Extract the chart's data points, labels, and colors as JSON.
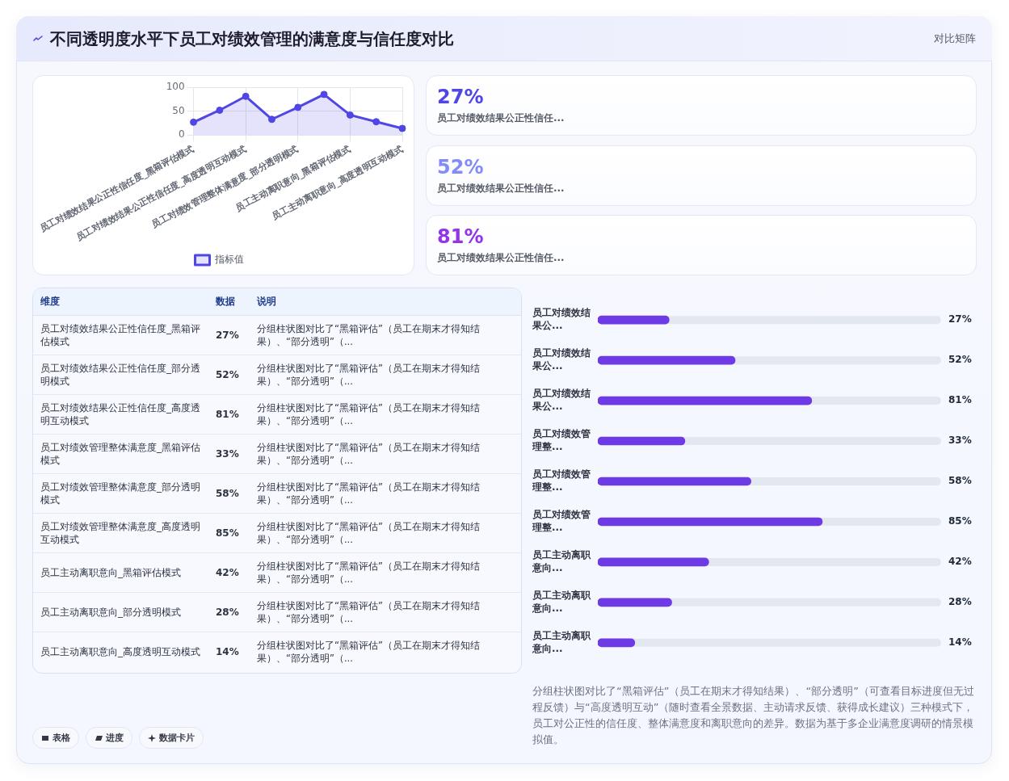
{
  "chart_data": [
    {
      "type": "other",
      "title": "不同透明度水平下员工对绩效管理的满意度与信任度对比",
      "annotations": [
        "对比矩阵"
      ]
    },
    {
      "type": "area",
      "categories": [
        "员工对绩效结果公正性信任度_黑箱评估模式",
        null,
        "员工对绩效结果公正性信任度_高度透明互动模式",
        null,
        "员工对绩效管理整体满意度_部分透明模式",
        null,
        "员工主动离职意向_黑箱评估模式",
        null,
        "员工主动离职意向_高度透明互动模式"
      ],
      "series": [
        {
          "name": "指标值",
          "color": "#4f46e5",
          "values": [
            27,
            52,
            81,
            33,
            58,
            85,
            42,
            28,
            14
          ]
        }
      ],
      "ylim": [
        0,
        100
      ],
      "yticks": [
        0,
        50,
        100
      ],
      "grid": true,
      "legend": "bottom",
      "marker": "circle"
    },
    {
      "type": "other",
      "annotations": [
        "27%",
        "员工对绩效结果公正性信任...",
        "52%",
        "员工对绩效结果公正性信任...",
        "81%",
        "员工对绩效结果公正性信任..."
      ],
      "colors": [
        "#4f46e5",
        "#818cf8",
        "#9333ea"
      ]
    },
    {
      "type": "other",
      "annotations": [
        "维度",
        "数据",
        "说明",
        "员工对绩效结果公正性信任度_黑箱评估模式",
        "27%",
        "分组柱状图对比了“黑箱评估”（员工在期末才得知结果）、“部分透明”（...",
        "员工对绩效结果公正性信任度_部分透明模式",
        "52%",
        "分组柱状图对比了“黑箱评估”（员工在期末才得知结果）、“部分透明”（...",
        "员工对绩效结果公正性信任度_高度透明互动模式",
        "81%",
        "分组柱状图对比了“黑箱评估”（员工在期末才得知结果）、“部分透明”（...",
        "员工对绩效管理整体满意度_黑箱评估模式",
        "33%",
        "分组柱状图对比了“黑箱评估”（员工在期末才得知结果）、“部分透明”（...",
        "员工对绩效管理整体满意度_部分透明模式",
        "58%",
        "分组柱状图对比了“黑箱评估”（员工在期末才得知结果）、“部分透明”（...",
        "员工对绩效管理整体满意度_高度透明互动模式",
        "85%",
        "分组柱状图对比了“黑箱评估”（员工在期末才得知结果）、“部分透明”（...",
        "员工主动离职意向_黑箱评估模式",
        "42%",
        "分组柱状图对比了“黑箱评估”（员工在期末才得知结果）、“部分透明”（...",
        "员工主动离职意向_部分透明模式",
        "28%",
        "分组柱状图对比了“黑箱评估”（员工在期末才得知结果）、“部分透明”（...",
        "员工主动离职意向_高度透明互动模式",
        "14%",
        "分组柱状图对比了“黑箱评估”（员工在期末才得知结果）、“部分透明”（..."
      ]
    },
    {
      "type": "bar",
      "orientation": "horizontal",
      "categories": [
        "员工对绩效结果公...",
        "员工对绩效结果公...",
        "员工对绩效结果公...",
        "员工对绩效管理整...",
        "员工对绩效管理整...",
        "员工对绩效管理整...",
        "员工主动离职意向...",
        "员工主动离职意向...",
        "员工主动离职意向..."
      ],
      "values": [
        27,
        52,
        81,
        33,
        58,
        85,
        42,
        28,
        14
      ],
      "color": "#6d3ae6",
      "xlim": [
        0,
        130
      ],
      "value_labels": [
        "27%",
        "52%",
        "81%",
        "33%",
        "58%",
        "85%",
        "42%",
        "28%",
        "14%"
      ],
      "tick_labels": "y",
      "annotations": [
        "分组柱状图对比了“黑箱评估”（员工在期末才得知结果）、“部分透明”（可查看目标进度但无过程反馈）与“高度透明互动”（随时查看全景数据、主动请求反馈、获得成长建议）三种模式下，员工对公正性的信任度、整体满意度和离职意向的差异。数据为基于多企业满意度调研的情景模拟值。"
      ]
    },
    {
      "type": "other",
      "annotations": [
        "表格",
        "进度",
        "数据卡片"
      ]
    }
  ]
}
